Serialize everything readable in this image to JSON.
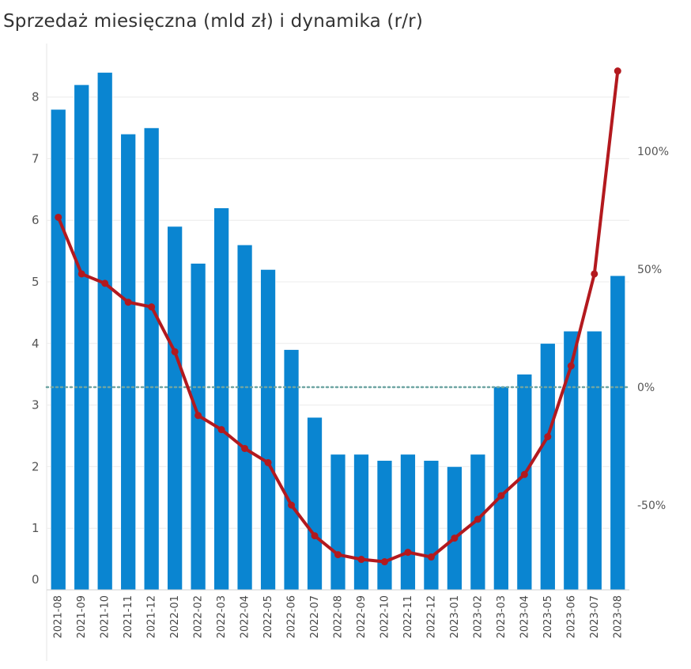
{
  "chart_data": {
    "type": "bar+line",
    "title": "Sprzedaż miesięczna (mld zł) i dynamika (r/r)",
    "categories": [
      "2021-08",
      "2021-09",
      "2021-10",
      "2021-11",
      "2021-12",
      "2022-01",
      "2022-02",
      "2022-03",
      "2022-04",
      "2022-05",
      "2022-06",
      "2022-07",
      "2022-08",
      "2022-09",
      "2022-10",
      "2022-11",
      "2022-12",
      "2023-01",
      "2023-02",
      "2023-03",
      "2023-04",
      "2023-05",
      "2023-06",
      "2023-07",
      "2023-08"
    ],
    "series": [
      {
        "name": "Sprzedaż miesięczna (mld zł)",
        "type": "bar",
        "axis": "left",
        "color": "#0a85d1",
        "values": [
          7.8,
          8.2,
          8.4,
          7.4,
          7.5,
          5.9,
          5.3,
          6.2,
          5.6,
          5.2,
          3.9,
          2.8,
          2.2,
          2.2,
          2.1,
          2.2,
          2.1,
          2.0,
          2.2,
          3.3,
          3.5,
          4.0,
          4.2,
          4.2,
          5.1
        ]
      },
      {
        "name": "Dynamika (r/r)",
        "type": "line",
        "axis": "right",
        "unit": "%",
        "color": "#b3191e",
        "values": [
          72,
          48,
          44,
          36,
          34,
          15,
          -12,
          -18,
          -26,
          -32,
          -50,
          -63,
          -71,
          -73,
          -74,
          -70,
          -72,
          -64,
          -56,
          -46,
          -37,
          -21,
          9,
          48,
          134
        ]
      }
    ],
    "y_left": {
      "ylim": [
        0,
        8.5
      ],
      "ticks": [
        "0",
        "1",
        "2",
        "3",
        "4",
        "5",
        "6",
        "7",
        "8"
      ]
    },
    "y_right": {
      "ylim": [
        -80,
        135
      ],
      "ticks": [
        -50,
        0,
        50,
        100
      ],
      "tick_labels": [
        "-50%",
        "0%",
        "50%",
        "100%"
      ],
      "zero_line": "dotted"
    },
    "grid": true,
    "colors": {
      "bar": "#0a85d1",
      "line": "#b3191e",
      "zero_line": "#6fa5a3",
      "grid": "#ececec"
    }
  }
}
